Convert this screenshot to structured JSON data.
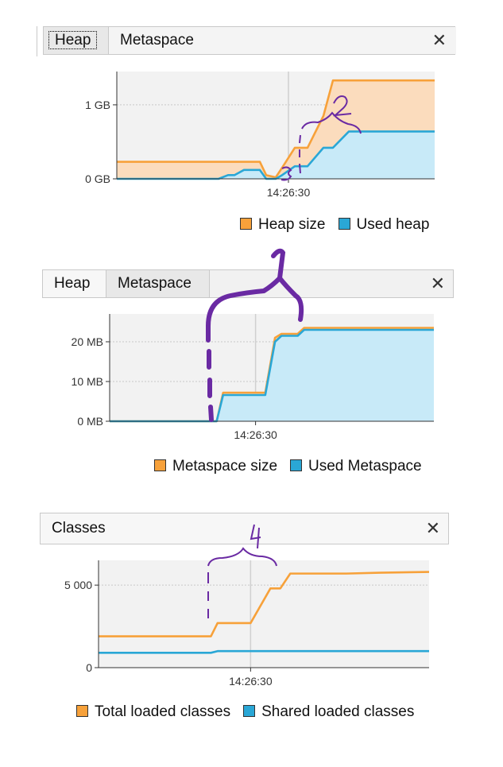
{
  "heap_panel": {
    "tabs": [
      {
        "label": "Heap"
      },
      {
        "label": "Metaspace"
      }
    ],
    "close": "✕",
    "legend": [
      "Heap size",
      "Used heap"
    ]
  },
  "metaspace_panel": {
    "tabs": [
      {
        "label": "Heap"
      },
      {
        "label": "Metaspace"
      }
    ],
    "close": "✕",
    "legend": [
      "Metaspace size",
      "Used Metaspace"
    ]
  },
  "classes_panel": {
    "tabs": [
      {
        "label": "Classes"
      }
    ],
    "close": "✕",
    "legend": [
      "Total loaded classes",
      "Shared loaded classes"
    ]
  },
  "annotations": [
    "1",
    "2",
    "3",
    "4"
  ],
  "colors": {
    "orange": "#f7a13a",
    "blue": "#2aa7d6",
    "orange_fill": "#fbdcbd",
    "blue_fill": "#c8eaf8"
  },
  "chart_data": [
    {
      "type": "area",
      "x_tick_labels": [
        "14:26:30"
      ],
      "y_tick_labels": [
        "1 GB",
        "0 GB"
      ],
      "y_ticks": [
        1,
        0
      ],
      "ylim": [
        0,
        1.45
      ],
      "x": [
        0,
        0.1,
        0.2,
        0.3,
        0.32,
        0.35,
        0.37,
        0.4,
        0.42,
        0.45,
        0.47,
        0.5,
        0.52,
        0.56,
        0.6,
        0.65,
        0.68,
        0.73,
        0.8,
        0.9,
        1.0
      ],
      "series": [
        {
          "name": "Heap size",
          "color": "#f7a13a",
          "values": [
            0.23,
            0.23,
            0.23,
            0.23,
            0.23,
            0.23,
            0.23,
            0.23,
            0.23,
            0.23,
            0.05,
            0.02,
            0.15,
            0.42,
            0.42,
            0.85,
            1.33,
            1.33,
            1.33,
            1.33,
            1.33
          ]
        },
        {
          "name": "Used heap",
          "color": "#2aa7d6",
          "values": [
            0.0,
            0.0,
            0.0,
            0.0,
            0.0,
            0.05,
            0.05,
            0.12,
            0.12,
            0.12,
            0.0,
            0.0,
            0.05,
            0.17,
            0.17,
            0.42,
            0.42,
            0.64,
            0.64,
            0.64,
            0.64
          ]
        }
      ],
      "grid": true
    },
    {
      "type": "area",
      "x_tick_labels": [
        "14:26:30"
      ],
      "y_tick_labels": [
        "20 MB",
        "10 MB",
        "0 MB"
      ],
      "y_ticks": [
        20,
        10,
        0
      ],
      "ylim": [
        0,
        27
      ],
      "x": [
        0,
        0.1,
        0.2,
        0.3,
        0.33,
        0.35,
        0.4,
        0.45,
        0.48,
        0.51,
        0.53,
        0.58,
        0.6,
        0.62,
        0.7,
        0.8,
        0.9,
        1.0
      ],
      "series": [
        {
          "name": "Metaspace size",
          "color": "#f7a13a",
          "values": [
            0,
            0,
            0,
            0,
            0,
            7.2,
            7.2,
            7.2,
            7.2,
            21,
            22,
            22,
            23.5,
            23.5,
            23.5,
            23.5,
            23.5,
            23.5
          ]
        },
        {
          "name": "Used Metaspace",
          "color": "#2aa7d6",
          "values": [
            0,
            0,
            0,
            0,
            0,
            6.6,
            6.6,
            6.6,
            6.6,
            20,
            21.5,
            21.5,
            23,
            23,
            23,
            23,
            23,
            23
          ]
        }
      ],
      "grid": true
    },
    {
      "type": "line",
      "x_tick_labels": [
        "14:26:30"
      ],
      "y_tick_labels": [
        "5 000",
        "0"
      ],
      "y_ticks": [
        5000,
        0
      ],
      "ylim": [
        0,
        6500
      ],
      "x": [
        0,
        0.1,
        0.2,
        0.3,
        0.34,
        0.36,
        0.43,
        0.46,
        0.52,
        0.55,
        0.58,
        0.67,
        0.75,
        0.85,
        1.0
      ],
      "series": [
        {
          "name": "Total loaded classes",
          "color": "#f7a13a",
          "values": [
            1900,
            1900,
            1900,
            1900,
            1900,
            2700,
            2700,
            2700,
            4800,
            4800,
            5700,
            5700,
            5700,
            5750,
            5800
          ]
        },
        {
          "name": "Shared loaded classes",
          "color": "#2aa7d6",
          "values": [
            900,
            900,
            900,
            900,
            900,
            1000,
            1000,
            1000,
            1000,
            1000,
            1000,
            1000,
            1000,
            1000,
            1000
          ]
        }
      ],
      "grid": true
    }
  ]
}
